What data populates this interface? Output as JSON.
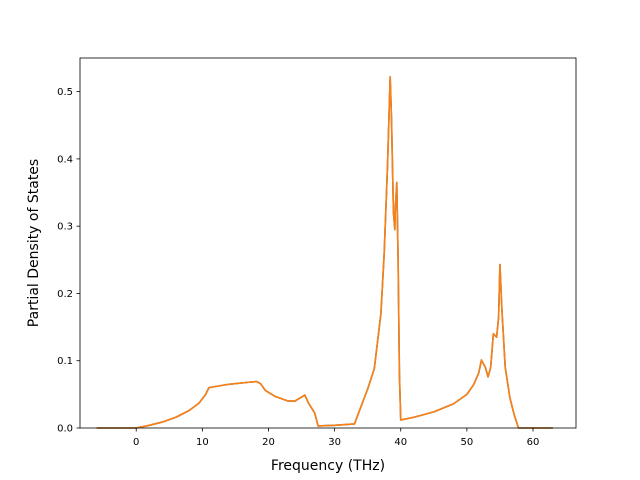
{
  "chart_data": {
    "type": "line",
    "title": "",
    "xlabel": "Frequency (THz)",
    "ylabel": "Partial Density of States",
    "xlim": [
      -8.5,
      66.5
    ],
    "ylim": [
      0.0,
      0.55
    ],
    "xticks": [
      0,
      10,
      20,
      30,
      40,
      50,
      60
    ],
    "yticks": [
      0.0,
      0.1,
      0.2,
      0.3,
      0.4,
      0.5
    ],
    "ytick_labels": [
      "0.0",
      "0.1",
      "0.2",
      "0.3",
      "0.4",
      "0.5"
    ],
    "grid": false,
    "legend": "none",
    "series": [
      {
        "color": "#1f77b4",
        "x": [
          -6,
          0,
          2,
          4,
          6,
          8,
          9.5,
          10.5,
          11,
          14,
          17,
          18.2,
          18.8,
          19.5,
          21,
          23,
          24,
          25.5,
          26,
          27,
          27.5,
          30,
          33,
          34,
          35,
          36,
          37,
          37.5,
          38,
          38.4,
          38.6,
          38.9,
          39.1,
          39.2,
          39.4,
          39.6,
          39.8,
          40.0,
          42,
          45,
          48,
          50,
          51,
          51.8,
          52.2,
          52.8,
          53.2,
          53.6,
          54.0,
          54.5,
          54.8,
          55.0,
          55.3,
          55.8,
          56.5,
          57.2,
          57.8,
          60,
          63
        ],
        "values": [
          0.0,
          0.0,
          0.004,
          0.009,
          0.016,
          0.026,
          0.037,
          0.05,
          0.06,
          0.065,
          0.068,
          0.069,
          0.066,
          0.056,
          0.047,
          0.04,
          0.04,
          0.049,
          0.038,
          0.022,
          0.003,
          0.004,
          0.006,
          0.032,
          0.058,
          0.088,
          0.17,
          0.26,
          0.39,
          0.522,
          0.46,
          0.32,
          0.295,
          0.33,
          0.365,
          0.25,
          0.08,
          0.012,
          0.016,
          0.024,
          0.036,
          0.05,
          0.064,
          0.082,
          0.101,
          0.09,
          0.076,
          0.09,
          0.14,
          0.135,
          0.165,
          0.243,
          0.175,
          0.09,
          0.045,
          0.018,
          0.0,
          0.0,
          0.0
        ]
      },
      {
        "color": "#ff7f0e",
        "x": [
          -6,
          0,
          2,
          4,
          6,
          8,
          9.5,
          10.5,
          11,
          14,
          17,
          18.2,
          18.8,
          19.5,
          21,
          23,
          24,
          25.5,
          26,
          27,
          27.5,
          30,
          33,
          34,
          35,
          36,
          37,
          37.5,
          38,
          38.4,
          38.6,
          38.9,
          39.1,
          39.2,
          39.4,
          39.6,
          39.8,
          40.0,
          42,
          45,
          48,
          50,
          51,
          51.8,
          52.2,
          52.8,
          53.2,
          53.6,
          54.0,
          54.5,
          54.8,
          55.0,
          55.3,
          55.8,
          56.5,
          57.2,
          57.8,
          60,
          63
        ],
        "values": [
          0.0,
          0.0,
          0.004,
          0.009,
          0.016,
          0.026,
          0.037,
          0.05,
          0.06,
          0.065,
          0.068,
          0.069,
          0.066,
          0.056,
          0.047,
          0.04,
          0.04,
          0.049,
          0.038,
          0.022,
          0.003,
          0.004,
          0.006,
          0.032,
          0.058,
          0.088,
          0.17,
          0.26,
          0.39,
          0.522,
          0.46,
          0.32,
          0.295,
          0.33,
          0.365,
          0.25,
          0.08,
          0.012,
          0.016,
          0.024,
          0.036,
          0.05,
          0.064,
          0.082,
          0.101,
          0.09,
          0.076,
          0.09,
          0.14,
          0.135,
          0.165,
          0.243,
          0.175,
          0.09,
          0.045,
          0.018,
          0.0,
          0.0,
          0.0
        ]
      }
    ]
  }
}
